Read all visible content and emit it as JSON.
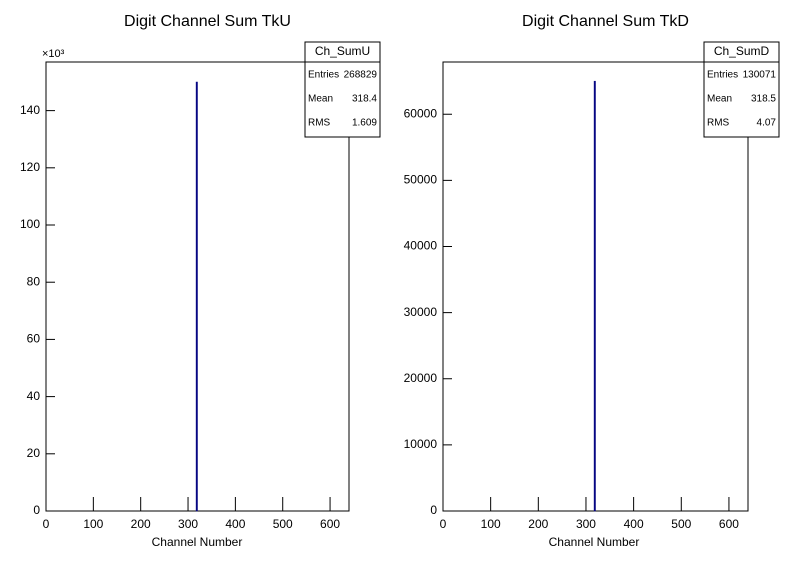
{
  "chart_data": [
    {
      "type": "histogram",
      "title": "Digit Channel Sum TkU",
      "x_label": "Channel Number",
      "y_multiplier": "×10³",
      "bins": [
        317,
        320
      ],
      "counts": [
        150
      ],
      "color": "#000080",
      "xlim": [
        0,
        640
      ],
      "xticks": [
        0,
        100,
        200,
        300,
        400,
        500,
        600
      ],
      "ylim": [
        0,
        157
      ],
      "yticks": [
        0,
        20,
        40,
        60,
        80,
        100,
        120,
        140
      ],
      "stats": {
        "name": "Ch_SumU",
        "rows": [
          [
            "Entries",
            268829
          ],
          [
            "Mean",
            318.4
          ],
          [
            "RMS",
            1.609
          ]
        ]
      }
    },
    {
      "type": "histogram",
      "title": "Digit Channel Sum TkD",
      "x_label": "Channel Number",
      "bins": [
        317,
        320
      ],
      "counts": [
        65000
      ],
      "color": "#000080",
      "xlim": [
        0,
        640
      ],
      "xticks": [
        0,
        100,
        200,
        300,
        400,
        500,
        600
      ],
      "ylim": [
        0,
        67900
      ],
      "yticks": [
        0,
        10000,
        20000,
        30000,
        40000,
        50000,
        60000
      ],
      "stats": {
        "name": "Ch_SumD",
        "rows": [
          [
            "Entries",
            130071
          ],
          [
            "Mean",
            318.5
          ],
          [
            "RMS",
            4.07
          ]
        ]
      }
    }
  ]
}
